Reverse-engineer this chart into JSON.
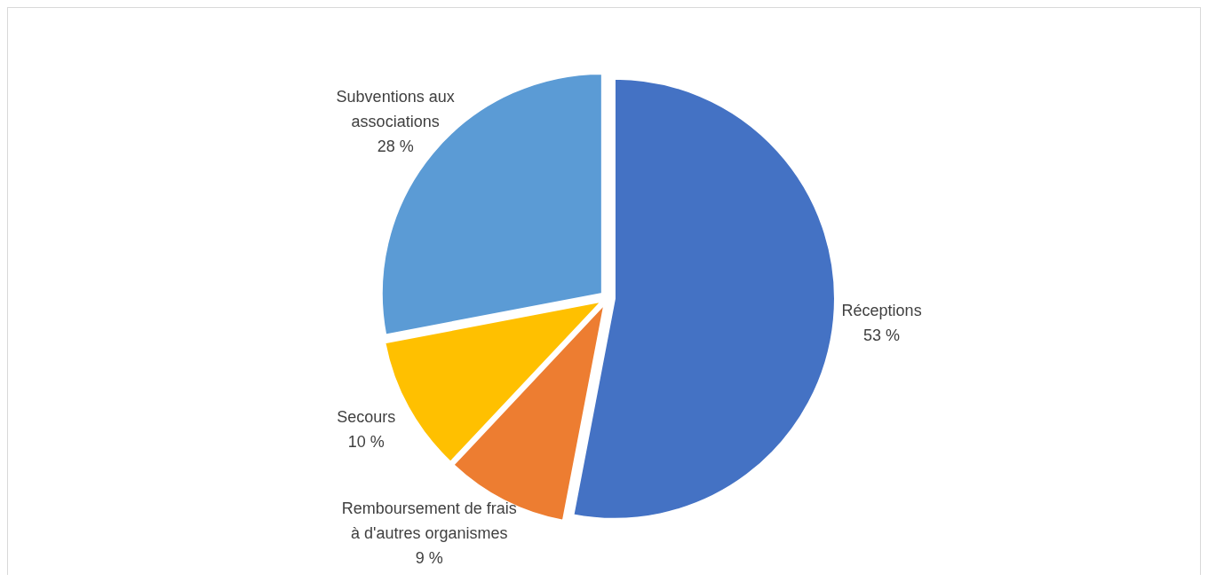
{
  "chart_data": {
    "type": "pie",
    "categories": [
      "Réceptions",
      "Remboursement de frais à d'autres organismes",
      "Secours",
      "Subventions aux associations"
    ],
    "values": [
      53,
      9,
      10,
      28
    ],
    "colors": [
      "#4472c4",
      "#ed7d31",
      "#ffc000",
      "#5b9bd5"
    ],
    "value_labels": [
      "53 %",
      "9 %",
      "10 %",
      "28 %"
    ]
  }
}
